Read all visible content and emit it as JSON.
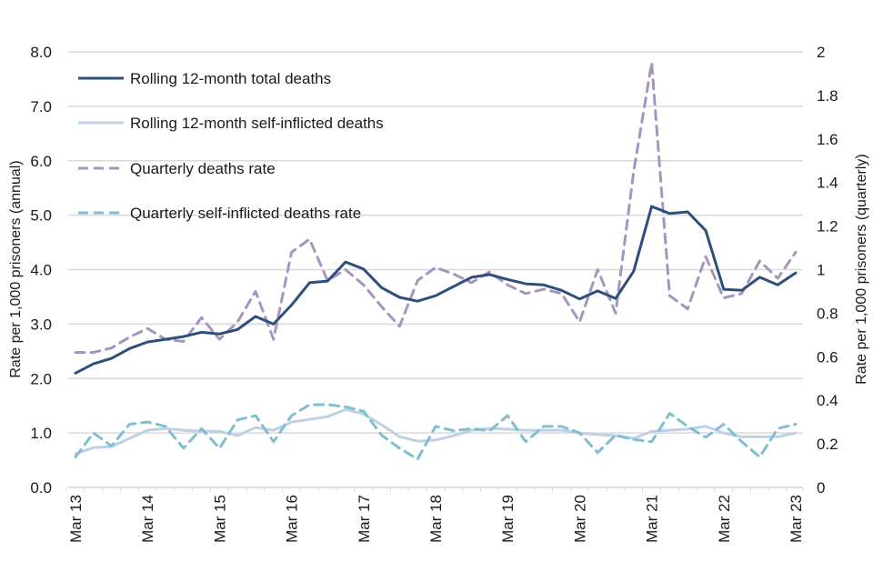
{
  "chart_data": {
    "type": "line",
    "title": "",
    "xlabel": "",
    "ylabel": "Rate per 1,000 prisoners (annual)",
    "y2label": "Rate per 1,000 prisoners (quarterly)",
    "ylim": [
      0,
      8
    ],
    "y2lim": [
      0,
      2
    ],
    "yticks": [
      "0.0",
      "1.0",
      "2.0",
      "3.0",
      "4.0",
      "5.0",
      "6.0",
      "7.0",
      "8.0"
    ],
    "y2ticks": [
      "0",
      "0.2",
      "0.4",
      "0.6",
      "0.8",
      "1",
      "1.2",
      "1.4",
      "1.6",
      "1.8",
      "2"
    ],
    "xtick_labels": [
      "Mar 13",
      "Mar 14",
      "Mar 15",
      "Mar 16",
      "Mar 17",
      "Mar 18",
      "Mar 19",
      "Mar 20",
      "Mar 21",
      "Mar 22",
      "Mar 23"
    ],
    "quarters_count": 41,
    "grid": true,
    "legend_position": "top-left",
    "series": [
      {
        "name": "Rolling 12-month total deaths",
        "axis": "left",
        "style": "solid",
        "color": "#2e4f7c",
        "values": [
          2.1,
          2.27,
          2.37,
          2.55,
          2.67,
          2.72,
          2.77,
          2.85,
          2.82,
          2.9,
          3.14,
          3.0,
          3.35,
          3.76,
          3.79,
          4.14,
          4.01,
          3.67,
          3.49,
          3.42,
          3.52,
          3.69,
          3.86,
          3.91,
          3.82,
          3.74,
          3.72,
          3.62,
          3.46,
          3.61,
          3.47,
          3.97,
          5.16,
          5.03,
          5.06,
          4.72,
          3.64,
          3.62,
          3.86,
          3.72,
          3.94
        ]
      },
      {
        "name": "Rolling 12-month self-inflicted deaths",
        "axis": "left",
        "style": "solid",
        "color": "#bfcfe6",
        "values": [
          0.62,
          0.73,
          0.75,
          0.9,
          1.05,
          1.08,
          1.05,
          1.03,
          1.03,
          0.95,
          1.1,
          1.05,
          1.2,
          1.25,
          1.3,
          1.43,
          1.35,
          1.15,
          0.93,
          0.85,
          0.87,
          0.95,
          1.05,
          1.08,
          1.07,
          1.05,
          1.05,
          1.05,
          1.0,
          0.97,
          0.95,
          0.9,
          1.03,
          1.05,
          1.07,
          1.12,
          1.0,
          0.93,
          0.93,
          0.93,
          1.0
        ]
      },
      {
        "name": "Quarterly deaths rate",
        "axis": "right",
        "style": "dashed",
        "color": "#a596c1",
        "values": [
          0.62,
          0.62,
          0.64,
          0.69,
          0.73,
          0.68,
          0.67,
          0.78,
          0.68,
          0.76,
          0.9,
          0.68,
          1.08,
          1.14,
          0.95,
          1.0,
          0.93,
          0.83,
          0.74,
          0.95,
          1.01,
          0.98,
          0.94,
          0.99,
          0.93,
          0.89,
          0.91,
          0.89,
          0.76,
          1.0,
          0.8,
          1.45,
          1.95,
          0.88,
          0.82,
          1.06,
          0.87,
          0.89,
          1.04,
          0.96,
          1.08
        ]
      },
      {
        "name": "Quarterly self-inflicted deaths rate",
        "axis": "right",
        "style": "dashed",
        "color": "#7fbfd0",
        "values": [
          0.14,
          0.25,
          0.19,
          0.29,
          0.3,
          0.28,
          0.18,
          0.27,
          0.18,
          0.31,
          0.33,
          0.21,
          0.33,
          0.38,
          0.38,
          0.37,
          0.35,
          0.24,
          0.18,
          0.13,
          0.28,
          0.26,
          0.27,
          0.26,
          0.33,
          0.21,
          0.28,
          0.28,
          0.25,
          0.16,
          0.24,
          0.22,
          0.21,
          0.34,
          0.28,
          0.23,
          0.29,
          0.21,
          0.14,
          0.27,
          0.29
        ]
      }
    ]
  }
}
